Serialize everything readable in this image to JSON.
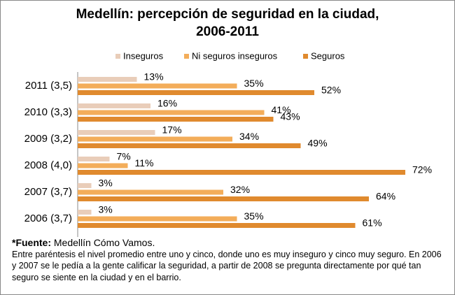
{
  "chart_data": {
    "type": "hbar",
    "title": "Medellín: percepción de seguridad en la ciudad,",
    "subtitle": "2006-2011",
    "categories": [
      "2011 (3,5)",
      "2010 (3,3)",
      "2009 (3,2)",
      "2008 (4,0)",
      "2007 (3,7)",
      "2006 (3,7)"
    ],
    "series": [
      {
        "name": "Inseguros",
        "color": "#e9cdb9",
        "values": [
          13,
          16,
          17,
          7,
          3,
          3
        ],
        "value_labels": [
          "13%",
          "16%",
          "17%",
          "7%",
          "3%",
          "3%"
        ]
      },
      {
        "name": "Ni seguros inseguros",
        "color": "#f3ad5a",
        "values": [
          35,
          41,
          34,
          11,
          32,
          35
        ],
        "value_labels": [
          "35%",
          "41%",
          "34%",
          "11%",
          "32%",
          "35%"
        ]
      },
      {
        "name": "Seguros",
        "color": "#e08a2e",
        "values": [
          52,
          43,
          49,
          72,
          64,
          61
        ],
        "value_labels": [
          "52%",
          "43%",
          "49%",
          "72%",
          "64%",
          "61%"
        ]
      }
    ],
    "legend": "top"
  },
  "footnote": {
    "label": "*Fuente:",
    "source": "Medellín Cómo Vamos.",
    "note": "Entre paréntesis el nivel promedio entre uno y cinco, donde uno es muy inseguro y cinco muy seguro. En 2006 y 2007 se le pedía a la gente calificar la seguridad, a partir de 2008 se pregunta directamente por qué tan seguro se siente en la ciudad y en el barrio."
  }
}
